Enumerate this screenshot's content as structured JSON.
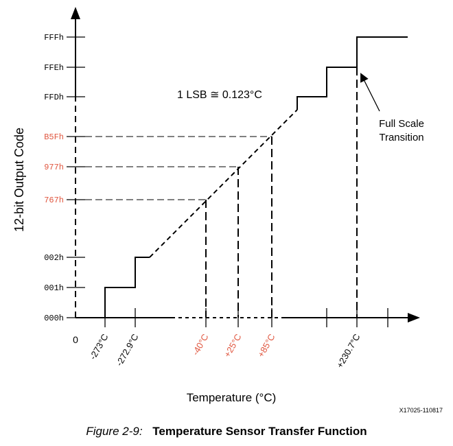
{
  "diagram": {
    "y_axis_label": "12-bit Output Code",
    "x_axis_label": "Temperature (°C)",
    "lsb_note": "1 LSB ≅ 0.123°C",
    "full_scale_label_line1": "Full Scale",
    "full_scale_label_line2": "Transition",
    "doc_id": "X17025-110817",
    "origin_label": "0",
    "y_codes": {
      "c000": "000h",
      "c001": "001h",
      "c002": "002h",
      "c767": "767h",
      "c977": "977h",
      "cB5F": "B5Fh",
      "cFFD": "FFDh",
      "cFFE": "FFEh",
      "cFFF": "FFFh"
    },
    "x_temps": {
      "t_m273": "-273°C",
      "t_m2729": "-272.9°C",
      "t_m40": "-40°C",
      "t_p25": "+25°C",
      "t_p85": "+85°C",
      "t_p2307": "+230.7°C"
    },
    "colors": {
      "ink": "#000000",
      "highlight": "#e0563f"
    }
  },
  "caption": {
    "figure_number": "Figure 2-9:",
    "title": "Temperature Sensor Transfer Function"
  }
}
